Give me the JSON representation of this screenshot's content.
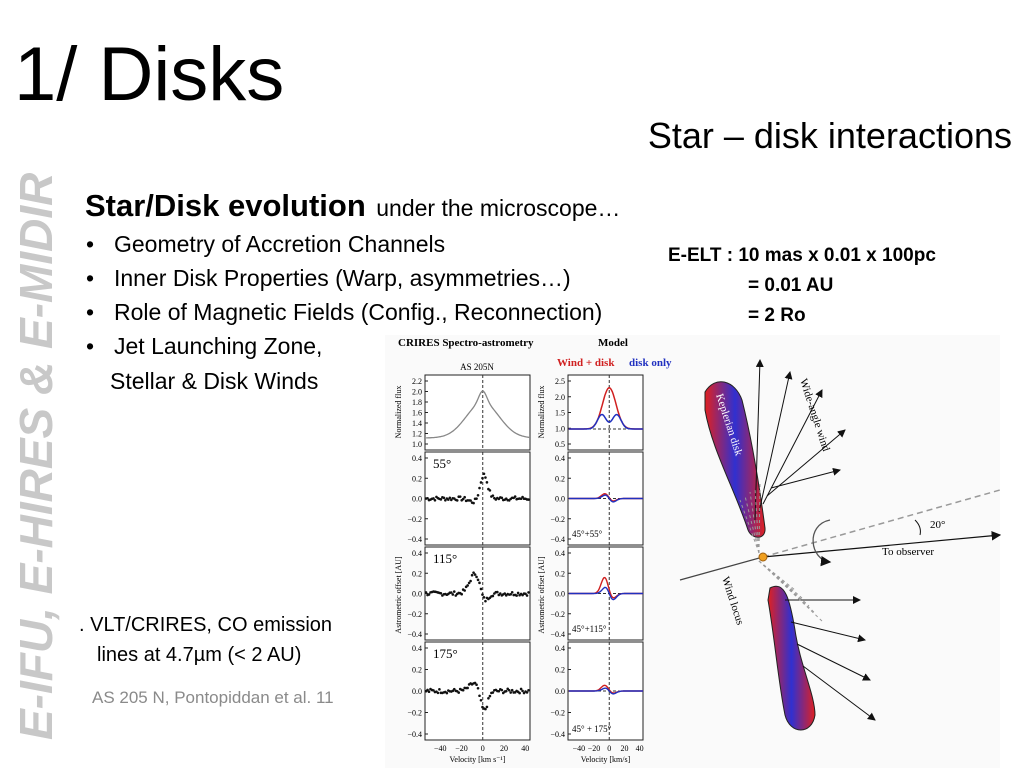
{
  "title": "1/ Disks",
  "subtitle": "Star – disk interactions",
  "side_label": "E-IFU, E-HIRES & E-MIDIR",
  "heading": {
    "bold": "Star/Disk evolution",
    "rest": "under the microscope…"
  },
  "bullets": [
    "Geometry of Accretion Channels",
    "Inner Disk Properties (Warp, asymmetries…)",
    "Role of Magnetic Fields (Config., Reconnection)",
    "Jet Launching Zone,"
  ],
  "bullet_cont": "Stellar & Disk Winds",
  "eelt": [
    "E-ELT : 10 mas x 0.01 x 100pc",
    "= 0.01 AU",
    "= 2 Ro"
  ],
  "caption": [
    ". VLT/CRIRES, CO emission",
    "lines at 4.7µm  (< 2 AU)"
  ],
  "credit": "AS 205 N, Pontopiddan et al. 11",
  "figure": {
    "obs_title": "CRIRES Spectro-astrometry",
    "model_title": "Model",
    "object": "AS 205N",
    "legend": [
      "Wind + disk",
      "disk only"
    ],
    "flux_label": "Normalized flux",
    "offset_label": "Astrometric offset [AU]",
    "obs_angles": [
      "55°",
      "115°",
      "175°"
    ],
    "model_angles": [
      "45°+55°",
      "45°+115°",
      "45° + 175°"
    ],
    "obs_xlabel": "Velocity [km s⁻¹]",
    "model_xlabel": "Velocity [km/s]",
    "xticks": [
      "−40",
      "−20",
      "0",
      "20",
      "40"
    ],
    "obs_flux_ticks": [
      "2.2",
      "2.0",
      "1.8",
      "1.6",
      "1.4",
      "1.2",
      "1.0"
    ],
    "model_flux_ticks": [
      "2.5",
      "2.0",
      "1.5",
      "1.0",
      "0.5"
    ],
    "offset_ticks": [
      "0.4",
      "0.2",
      "0.0",
      "−0.2",
      "−0.4"
    ],
    "diagram": {
      "disk": "Keplerian disk",
      "wind": "Wide-angle wind",
      "locus": "Wind locus",
      "observer": "To observer",
      "angle": "20°"
    }
  }
}
